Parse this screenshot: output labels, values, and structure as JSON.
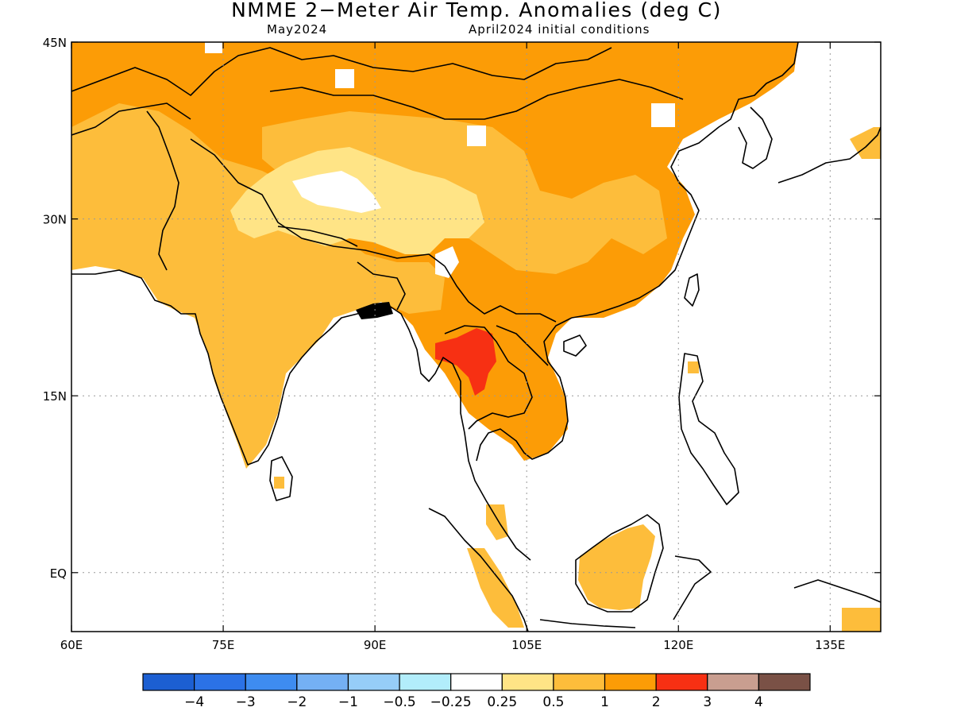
{
  "title": "NMME 2−Meter Air Temp. Anomalies (deg C)",
  "subtitle_left": "May2024",
  "subtitle_right": "April2024 initial conditions",
  "map": {
    "lon_range": [
      60,
      140
    ],
    "lat_range": [
      -5,
      45
    ],
    "x_ticks": [
      {
        "lon": 60,
        "label": "60E"
      },
      {
        "lon": 75,
        "label": "75E"
      },
      {
        "lon": 90,
        "label": "90E"
      },
      {
        "lon": 105,
        "label": "105E"
      },
      {
        "lon": 120,
        "label": "120E"
      },
      {
        "lon": 135,
        "label": "135E"
      }
    ],
    "y_ticks": [
      {
        "lat": 45,
        "label": "45N"
      },
      {
        "lat": 30,
        "label": "30N"
      },
      {
        "lat": 15,
        "label": "15N"
      },
      {
        "lat": 0,
        "label": "EQ"
      }
    ],
    "grid": "dotted"
  },
  "colorbar": {
    "colors": [
      "#1c5fd2",
      "#2b72e6",
      "#3e8cf0",
      "#74b0f4",
      "#96cdf8",
      "#b2edfb",
      "#ffffff",
      "#ffe486",
      "#fdbd3b",
      "#fc9c06",
      "#f73013",
      "#c99e90",
      "#7a5146"
    ],
    "labels": [
      "−4",
      "−3",
      "−2",
      "−1",
      "−0.5",
      "−0.25",
      "0.25",
      "0.5",
      "1",
      "2",
      "3",
      "4"
    ]
  },
  "legend_colors": {
    "anom_025_05": "#ffe486",
    "anom_05_1": "#fdbd3b",
    "anom_1_2": "#fc9c06",
    "anom_2_3": "#f73013"
  }
}
